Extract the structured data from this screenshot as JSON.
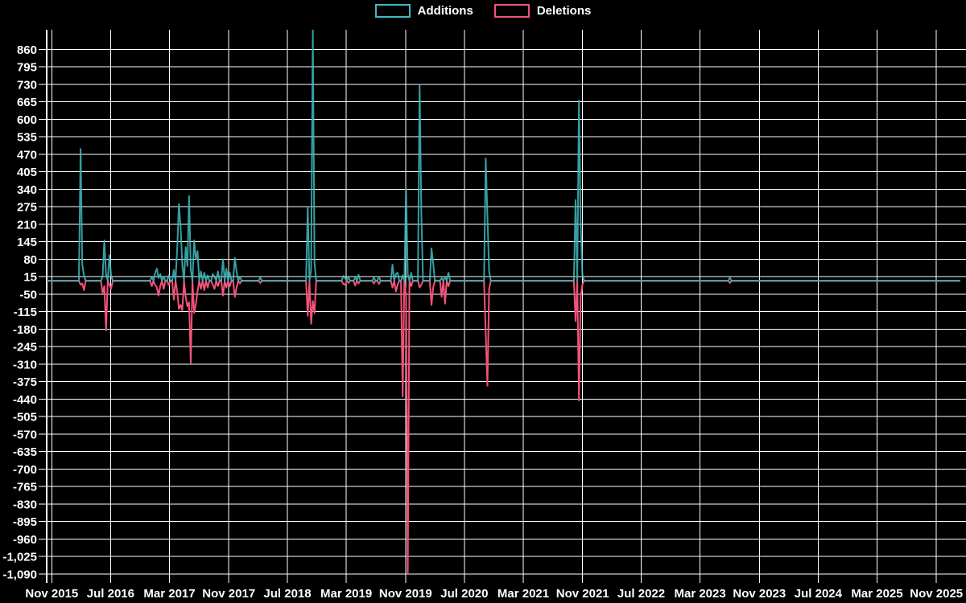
{
  "legend": {
    "additions_label": "Additions",
    "deletions_label": "Deletions"
  },
  "colors": {
    "background": "#000000",
    "grid": "#ffffff",
    "text": "#ffffff",
    "additions": "#3fbac0",
    "deletions": "#f3527a"
  },
  "chart_data": {
    "type": "line",
    "title": "",
    "legend_position": "top-center",
    "grid": true,
    "legend": [
      {
        "label": "Additions",
        "color": "#3fbac0"
      },
      {
        "label": "Deletions",
        "color": "#f3527a"
      }
    ],
    "x_domain": [
      "2015-10-11",
      "2026-02-08"
    ],
    "ylim": [
      -1123,
      933
    ],
    "y_ticks": [
      860,
      795,
      730,
      665,
      600,
      535,
      470,
      405,
      340,
      275,
      210,
      145,
      80,
      15,
      -50,
      -115,
      -180,
      -245,
      -310,
      -375,
      -440,
      -505,
      -570,
      -635,
      -700,
      -765,
      -830,
      -895,
      -960,
      -1025,
      -1090
    ],
    "x_ticks": [
      {
        "label": "Nov 2015",
        "date": "2015-11-01"
      },
      {
        "label": "Jul 2016",
        "date": "2016-07-01"
      },
      {
        "label": "Mar 2017",
        "date": "2017-03-01"
      },
      {
        "label": "Nov 2017",
        "date": "2017-11-01"
      },
      {
        "label": "Jul 2018",
        "date": "2018-07-01"
      },
      {
        "label": "Mar 2019",
        "date": "2019-03-01"
      },
      {
        "label": "Nov 2019",
        "date": "2019-11-01"
      },
      {
        "label": "Jul 2020",
        "date": "2020-07-01"
      },
      {
        "label": "Mar 2021",
        "date": "2021-03-01"
      },
      {
        "label": "Nov 2021",
        "date": "2021-11-01"
      },
      {
        "label": "Jul 2022",
        "date": "2022-07-01"
      },
      {
        "label": "Mar 2023",
        "date": "2023-03-01"
      },
      {
        "label": "Nov 2023",
        "date": "2023-11-01"
      },
      {
        "label": "Jul 2024",
        "date": "2024-07-01"
      },
      {
        "label": "Mar 2025",
        "date": "2025-03-01"
      },
      {
        "label": "Nov 2025",
        "date": "2025-11-01"
      }
    ],
    "points_format": [
      "week",
      "additions",
      "deletions"
    ],
    "points": [
      [
        "2016-02-28",
        490,
        -15
      ],
      [
        "2016-03-06",
        60,
        -10
      ],
      [
        "2016-03-13",
        20,
        -35
      ],
      [
        "2016-05-29",
        15,
        -45
      ],
      [
        "2016-06-05",
        150,
        -20
      ],
      [
        "2016-06-12",
        25,
        -185
      ],
      [
        "2016-06-26",
        95,
        -15
      ],
      [
        "2016-07-03",
        20,
        -30
      ],
      [
        "2016-12-18",
        15,
        -20
      ],
      [
        "2017-01-01",
        30,
        -15
      ],
      [
        "2017-01-08",
        45,
        -25
      ],
      [
        "2017-01-15",
        10,
        -55
      ],
      [
        "2017-01-22",
        25,
        -20
      ],
      [
        "2017-02-05",
        15,
        -30
      ],
      [
        "2017-02-26",
        20,
        -15
      ],
      [
        "2017-03-19",
        40,
        -70
      ],
      [
        "2017-04-02",
        120,
        -40
      ],
      [
        "2017-04-09",
        285,
        -105
      ],
      [
        "2017-04-16",
        200,
        -90
      ],
      [
        "2017-04-23",
        60,
        -110
      ],
      [
        "2017-05-07",
        125,
        -60
      ],
      [
        "2017-05-14",
        55,
        -95
      ],
      [
        "2017-05-21",
        315,
        -80
      ],
      [
        "2017-05-28",
        40,
        -305
      ],
      [
        "2017-06-11",
        150,
        -120
      ],
      [
        "2017-06-18",
        80,
        -85
      ],
      [
        "2017-06-25",
        110,
        -40
      ],
      [
        "2017-07-09",
        35,
        -30
      ],
      [
        "2017-07-23",
        30,
        -35
      ],
      [
        "2017-08-06",
        20,
        -25
      ],
      [
        "2017-08-27",
        25,
        -15
      ],
      [
        "2017-09-03",
        15,
        -30
      ],
      [
        "2017-09-17",
        35,
        -20
      ],
      [
        "2017-10-08",
        80,
        -55
      ],
      [
        "2017-10-22",
        45,
        -25
      ],
      [
        "2017-11-05",
        30,
        -20
      ],
      [
        "2017-11-26",
        85,
        -60
      ],
      [
        "2017-12-03",
        35,
        -25
      ],
      [
        "2017-12-17",
        15,
        -10
      ],
      [
        "2018-03-11",
        12,
        -8
      ],
      [
        "2018-09-23",
        275,
        -130
      ],
      [
        "2018-10-07",
        40,
        -160
      ],
      [
        "2018-10-14",
        935,
        -75
      ],
      [
        "2018-10-21",
        65,
        -120
      ],
      [
        "2019-02-17",
        18,
        -12
      ],
      [
        "2019-02-24",
        10,
        -15
      ],
      [
        "2019-03-10",
        15,
        -8
      ],
      [
        "2019-04-07",
        12,
        -18
      ],
      [
        "2019-04-21",
        22,
        -10
      ],
      [
        "2019-06-23",
        12,
        -10
      ],
      [
        "2019-07-14",
        15,
        -12
      ],
      [
        "2019-09-08",
        60,
        -25
      ],
      [
        "2019-09-22",
        25,
        -40
      ],
      [
        "2019-09-29",
        30,
        -15
      ],
      [
        "2019-10-20",
        20,
        -430
      ],
      [
        "2019-11-03",
        340,
        -60
      ],
      [
        "2019-11-10",
        25,
        -1090
      ],
      [
        "2019-11-24",
        30,
        -20
      ],
      [
        "2019-12-29",
        730,
        -25
      ],
      [
        "2020-01-05",
        255,
        -15
      ],
      [
        "2020-02-16",
        120,
        -90
      ],
      [
        "2020-02-23",
        65,
        -25
      ],
      [
        "2020-03-29",
        10,
        -60
      ],
      [
        "2020-04-12",
        15,
        -85
      ],
      [
        "2020-04-26",
        30,
        -20
      ],
      [
        "2020-09-27",
        455,
        -195
      ],
      [
        "2020-10-04",
        240,
        -390
      ],
      [
        "2020-10-11",
        35,
        -30
      ],
      [
        "2021-10-03",
        300,
        -150
      ],
      [
        "2021-10-17",
        670,
        -445
      ],
      [
        "2021-10-24",
        215,
        -60
      ],
      [
        "2021-10-31",
        25,
        -15
      ],
      [
        "2023-07-02",
        12,
        -8
      ]
    ]
  }
}
